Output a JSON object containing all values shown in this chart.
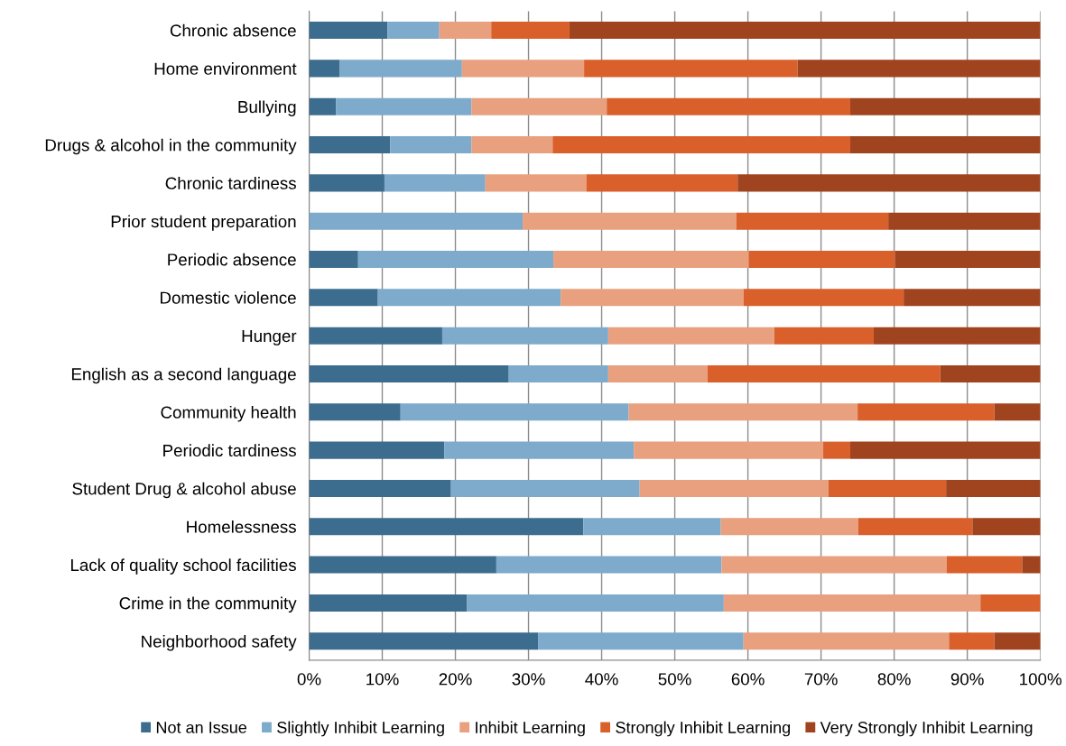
{
  "chart_data": {
    "type": "bar",
    "orientation": "horizontal",
    "stacked": true,
    "categories": [
      "Chronic absence",
      "Home environment",
      "Bullying",
      "Drugs & alcohol in the community",
      "Chronic tardiness",
      "Prior student preparation",
      "Periodic absence",
      "Domestic violence",
      "Hunger",
      "English as a second language",
      "Community health",
      "Periodic tardiness",
      "Student Drug & alcohol abuse",
      "Homelessness",
      "Lack of quality school facilities",
      "Crime in the community",
      "Neighborhood safety"
    ],
    "series": [
      {
        "name": "Not an Issue",
        "color": "#3d6d8e",
        "values": [
          10.7,
          4.2,
          3.7,
          11.1,
          10.3,
          0,
          6.7,
          9.4,
          18.2,
          27.3,
          12.5,
          18.5,
          19.4,
          37.5,
          25.6,
          21.6,
          31.3
        ]
      },
      {
        "name": "Slightly Inhibit Learning",
        "color": "#7eaacb",
        "values": [
          7.1,
          16.7,
          18.5,
          11.1,
          13.8,
          29.2,
          26.7,
          25.0,
          22.7,
          13.6,
          31.2,
          25.9,
          25.8,
          18.8,
          30.8,
          35.1,
          28.1
        ]
      },
      {
        "name": "Inhibit Learning",
        "color": "#e8a07f",
        "values": [
          7.1,
          16.7,
          18.5,
          11.1,
          13.8,
          29.2,
          26.7,
          25.0,
          22.7,
          13.6,
          31.3,
          25.9,
          25.8,
          18.8,
          30.8,
          35.1,
          28.1
        ]
      },
      {
        "name": "Strongly Inhibit Learning",
        "color": "#d95f2b",
        "values": [
          10.7,
          29.2,
          33.3,
          40.7,
          20.7,
          20.8,
          20.0,
          21.9,
          13.6,
          31.8,
          18.7,
          3.7,
          16.1,
          15.6,
          10.3,
          8.2,
          6.2
        ]
      },
      {
        "name": "Very Strongly Inhibit Learning",
        "color": "#a0441f",
        "values": [
          64.4,
          33.2,
          26.0,
          26.0,
          41.4,
          20.8,
          19.9,
          18.7,
          22.8,
          13.7,
          6.3,
          26.0,
          12.9,
          9.3,
          2.5,
          0,
          6.3
        ]
      }
    ],
    "xlim": [
      0,
      100
    ],
    "xticks": [
      {
        "value": 0,
        "label": "0%"
      },
      {
        "value": 10,
        "label": "10%"
      },
      {
        "value": 20,
        "label": "20%"
      },
      {
        "value": 30,
        "label": "30%"
      },
      {
        "value": 40,
        "label": "40%"
      },
      {
        "value": 50,
        "label": "50%"
      },
      {
        "value": 60,
        "label": "60%"
      },
      {
        "value": 70,
        "label": "70%"
      },
      {
        "value": 80,
        "label": "80%"
      },
      {
        "value": 90,
        "label": "90%"
      },
      {
        "value": 100,
        "label": "100%"
      }
    ],
    "grid": "x",
    "legend": "bottom"
  }
}
